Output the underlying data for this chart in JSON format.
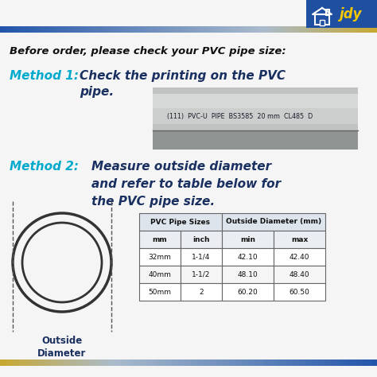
{
  "bg_color": "#f5f5f5",
  "header_text": "Before order, please check your PVC pipe size:",
  "method1_label": "Method 1:",
  "method1_text_line1": "Check the printing on the PVC",
  "method1_text_line2": "pipe.",
  "method2_label": "Method 2:",
  "method2_text_line1": "Measure outside diameter",
  "method2_text_line2": "and refer to table below for",
  "method2_text_line3": "the PVC pipe size.",
  "outside_diameter_label": "Outside\nDiameter",
  "table_headers_top": [
    "PVC Pipe Sizes",
    "Outside Diameter (mm)"
  ],
  "table_headers_sub": [
    "mm",
    "inch",
    "min",
    "max"
  ],
  "table_data": [
    [
      "32mm",
      "1-1/4",
      "42.10",
      "42.40"
    ],
    [
      "40mm",
      "1-1/2",
      "48.10",
      "48.40"
    ],
    [
      "50mm",
      "2",
      "60.20",
      "60.50"
    ]
  ],
  "cyan_color": "#00aacc",
  "dark_navy": "#1a3060",
  "text_dark": "#111111",
  "logo_bg": "#1e4fa0",
  "logo_text_color": "#f5c800",
  "pipe_img_text": "(111)  PVC-U  PIPE  BS3585  20 mm  CL485  D",
  "top_bar_blue": "#2255aa",
  "top_bar_gold": "#c8a830",
  "bottom_bar_blue": "#2255aa",
  "bottom_bar_gold": "#c8a830"
}
